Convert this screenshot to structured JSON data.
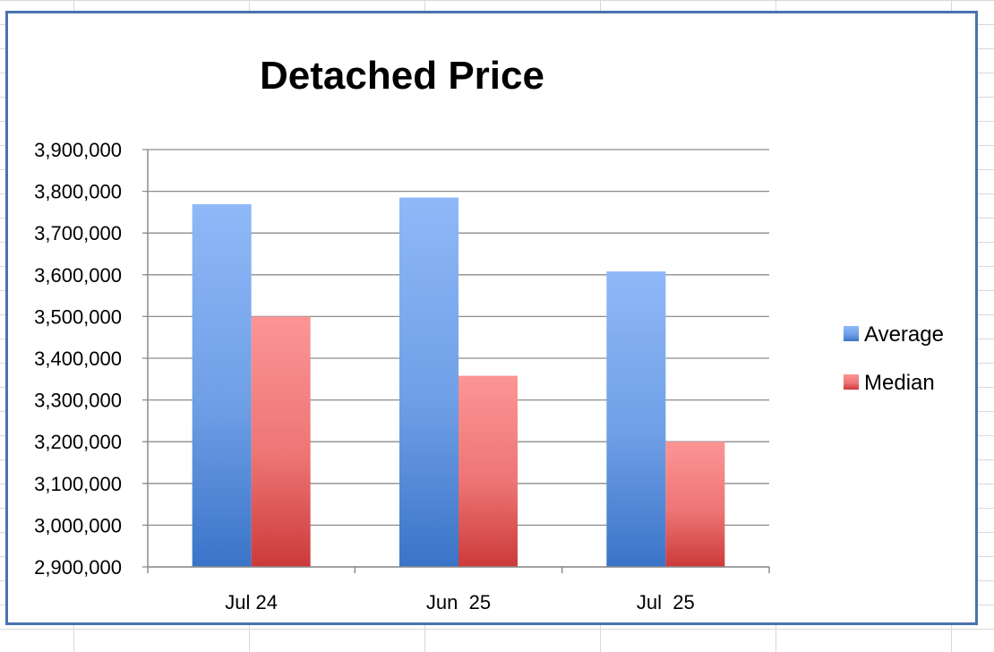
{
  "chart_data": {
    "type": "bar",
    "title": "Detached Price",
    "categories": [
      "Jul 24",
      "Jun  25",
      "Jul  25"
    ],
    "series": [
      {
        "name": "Average",
        "values": [
          3769000,
          3785000,
          3608000
        ],
        "color": "#4f86d8"
      },
      {
        "name": "Median",
        "values": [
          3500000,
          3358000,
          3200000
        ],
        "color": "#e05252"
      }
    ],
    "ylim": [
      2900000,
      3900000
    ],
    "yticks": [
      "2,900,000",
      "3,000,000",
      "3,100,000",
      "3,200,000",
      "3,300,000",
      "3,400,000",
      "3,500,000",
      "3,600,000",
      "3,700,000",
      "3,800,000",
      "3,900,000"
    ],
    "grid": true,
    "legend": "right"
  }
}
